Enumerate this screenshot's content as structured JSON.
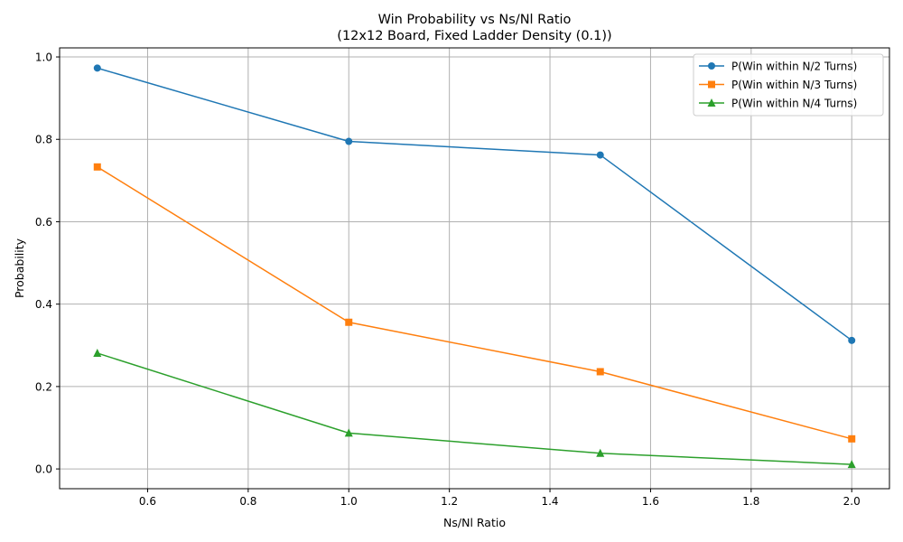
{
  "chart_data": {
    "type": "line",
    "title": "Win Probability vs Ns/Nl Ratio",
    "subtitle": "(12x12 Board, Fixed Ladder Density (0.1))",
    "xlabel": "Ns/Nl Ratio",
    "ylabel": "Probability",
    "x": [
      0.5,
      1.0,
      1.5,
      2.0
    ],
    "xlim": [
      0.425,
      2.075
    ],
    "ylim": [
      -0.048,
      1.022
    ],
    "xticks": [
      "0.6",
      "0.8",
      "1.0",
      "1.2",
      "1.4",
      "1.6",
      "1.8",
      "2.0"
    ],
    "yticks": [
      "0.0",
      "0.2",
      "0.4",
      "0.6",
      "0.8",
      "1.0"
    ],
    "grid": true,
    "legend_position": "top-right",
    "series": [
      {
        "name": "P(Win within N/2 Turns)",
        "values": [
          0.973,
          0.795,
          0.762,
          0.312
        ],
        "color": "#1f77b4",
        "marker": "circle"
      },
      {
        "name": "P(Win within N/3 Turns)",
        "values": [
          0.733,
          0.356,
          0.236,
          0.073
        ],
        "color": "#ff7f0e",
        "marker": "square"
      },
      {
        "name": "P(Win within N/4 Turns)",
        "values": [
          0.281,
          0.087,
          0.038,
          0.011
        ],
        "color": "#2ca02c",
        "marker": "triangle"
      }
    ]
  }
}
